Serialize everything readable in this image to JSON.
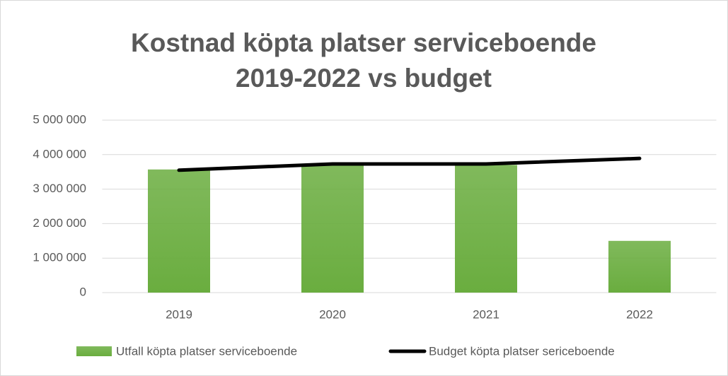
{
  "chart_data": {
    "type": "combo",
    "title": "Kostnad köpta platser serviceboende 2019-2022 vs budget",
    "categories": [
      "2019",
      "2020",
      "2021",
      "2022"
    ],
    "series": [
      {
        "name": "Utfall köpta platser serviceboende",
        "type": "bar",
        "color": "#6aad3f",
        "values": [
          3570000,
          3700000,
          3700000,
          1500000
        ]
      },
      {
        "name": "Budget köpta platser sericeboende",
        "type": "line",
        "color": "#000000",
        "values": [
          3550000,
          3730000,
          3730000,
          3890000
        ]
      }
    ],
    "ylim": [
      0,
      5000000
    ],
    "yticks": [
      0,
      {
        "value": 1000000,
        "label": "1 000 000"
      },
      {
        "value": 2000000,
        "label": "2 000 000"
      },
      {
        "value": 3000000,
        "label": "3 000 000"
      },
      {
        "value": 4000000,
        "label": "4 000 000"
      },
      {
        "value": 5000000,
        "label": "5 000 000"
      }
    ],
    "grid": true,
    "legend": "bottom"
  }
}
